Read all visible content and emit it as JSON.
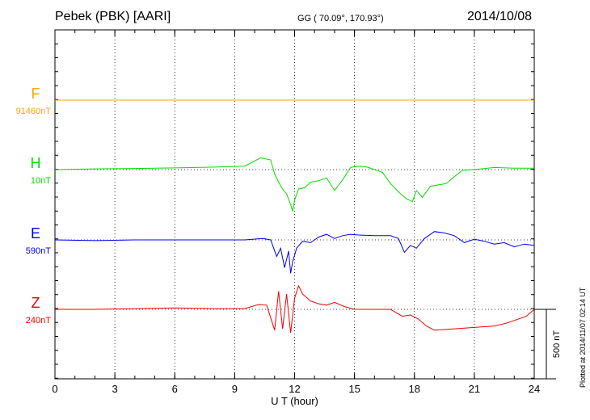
{
  "header": {
    "station": "Pebek (PBK)  [AARI]",
    "coords": "GG ( 70.09°, 170.93°)",
    "date": "2014/10/08"
  },
  "plotted_note": "Plotted at 2014/11/07 02:14 UT",
  "chart_data": {
    "type": "line",
    "xlabel": "U T (hour)",
    "xlim": [
      0,
      24
    ],
    "xticks": [
      "0",
      "3",
      "6",
      "9",
      "12",
      "15",
      "18",
      "21",
      "24"
    ],
    "scale_bar_label": "500 nT",
    "grid": true,
    "series": [
      {
        "name": "F",
        "baseline_label": "91460nT",
        "color": "#ffa500",
        "x": [
          0,
          3,
          6,
          9,
          12,
          15,
          18,
          21,
          24
        ],
        "y": [
          0,
          0,
          0,
          0,
          0,
          0,
          0,
          0,
          0
        ]
      },
      {
        "name": "H",
        "baseline_label": "10nT",
        "color": "#00dd00",
        "x": [
          0,
          2,
          4,
          6,
          8,
          9.5,
          10.3,
          10.8,
          11.0,
          11.2,
          11.4,
          11.6,
          11.8,
          11.9,
          12.0,
          12.2,
          12.5,
          12.8,
          13.2,
          13.6,
          14.0,
          14.4,
          14.8,
          15.2,
          15.6,
          16.0,
          16.4,
          16.8,
          17.2,
          17.6,
          17.9,
          18.1,
          18.4,
          18.8,
          19.2,
          19.6,
          20.0,
          20.4,
          21.0,
          22.0,
          23.0,
          24.0
        ],
        "y": [
          0,
          5,
          8,
          12,
          18,
          25,
          85,
          70,
          -30,
          -90,
          -140,
          -175,
          -250,
          -300,
          -220,
          -140,
          -130,
          -90,
          -80,
          -60,
          -150,
          -75,
          15,
          25,
          20,
          0,
          -20,
          -100,
          -160,
          -210,
          -230,
          -150,
          -200,
          -120,
          -110,
          -100,
          -50,
          -5,
          0,
          15,
          10,
          10
        ]
      },
      {
        "name": "E",
        "baseline_label": "590nT",
        "color": "#0000ee",
        "x": [
          0,
          2,
          4,
          6,
          8,
          9.5,
          10.4,
          10.8,
          11.1,
          11.3,
          11.5,
          11.7,
          11.8,
          11.9,
          12.1,
          12.4,
          12.8,
          13.2,
          13.6,
          14.0,
          14.4,
          14.8,
          15.2,
          16.0,
          16.8,
          17.2,
          17.5,
          17.8,
          18.1,
          18.5,
          19.0,
          19.5,
          20.0,
          20.5,
          21.0,
          21.5,
          22.0,
          22.5,
          23.0,
          23.5,
          24.0
        ],
        "y": [
          0,
          -5,
          0,
          0,
          0,
          0,
          10,
          0,
          -120,
          -60,
          -200,
          -80,
          -240,
          -160,
          -60,
          -10,
          -20,
          20,
          40,
          10,
          30,
          40,
          35,
          30,
          30,
          10,
          -90,
          -40,
          -60,
          10,
          60,
          50,
          30,
          -20,
          5,
          -10,
          -30,
          -20,
          -50,
          -30,
          -40
        ]
      },
      {
        "name": "Z",
        "baseline_label": "240nT",
        "color": "#ee0000",
        "x": [
          0,
          2,
          4,
          6,
          8,
          9.5,
          10.2,
          10.6,
          11.0,
          11.2,
          11.4,
          11.6,
          11.8,
          12.0,
          12.2,
          12.4,
          12.8,
          13.2,
          13.6,
          14.0,
          14.5,
          15.0,
          16.0,
          16.8,
          17.4,
          17.8,
          18.2,
          18.6,
          19.0,
          20.0,
          21.0,
          22.0,
          22.6,
          23.0,
          23.6,
          24.0
        ],
        "y": [
          0,
          0,
          5,
          10,
          5,
          5,
          35,
          30,
          -150,
          130,
          -140,
          110,
          -170,
          80,
          170,
          110,
          60,
          40,
          30,
          50,
          20,
          0,
          0,
          0,
          -50,
          -40,
          -70,
          -120,
          -150,
          -140,
          -130,
          -120,
          -100,
          -80,
          -50,
          0
        ]
      }
    ]
  }
}
